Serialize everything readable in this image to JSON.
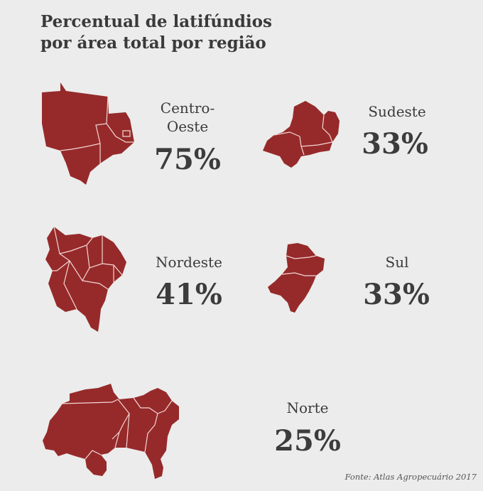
{
  "header": {
    "title_line1": "Percentual de latifúndios",
    "title_line2": "por área total por região"
  },
  "chart_data": {
    "type": "table",
    "title": "Percentual de latifúndios por área total por região",
    "unit": "%",
    "regions": [
      {
        "name_line1": "Centro-",
        "name_line2": "Oeste",
        "value": 75,
        "display": "75%"
      },
      {
        "name_line1": "Sudeste",
        "value": 33,
        "display": "33%"
      },
      {
        "name_line1": "Nordeste",
        "value": 41,
        "display": "41%"
      },
      {
        "name_line1": "Sul",
        "value": 33,
        "display": "33%"
      },
      {
        "name_line1": "Norte",
        "value": 25,
        "display": "25%"
      }
    ],
    "map_color": "#962a2a"
  },
  "footer": {
    "source": "Fonte: Atlas Agropecuário 2017"
  }
}
